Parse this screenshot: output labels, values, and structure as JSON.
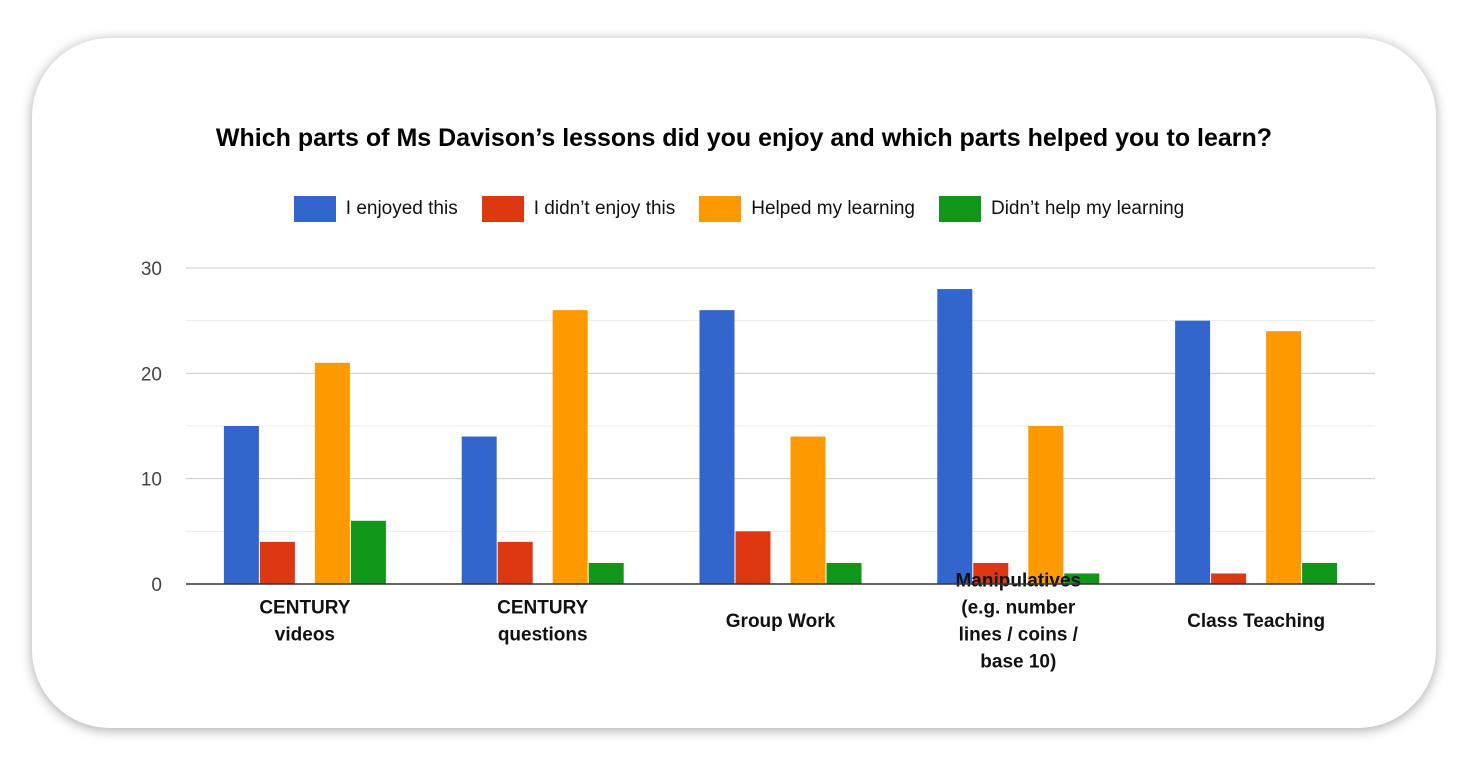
{
  "chart_data": {
    "type": "bar",
    "title": "Which parts of Ms Davison’s lessons did you enjoy and which parts helped you to learn?",
    "categories": [
      [
        "CENTURY",
        "videos"
      ],
      [
        "CENTURY",
        "questions"
      ],
      [
        "Group Work"
      ],
      [
        "Manipulatives",
        "(e.g. number",
        "lines / coins /",
        "base 10)"
      ],
      [
        "Class Teaching"
      ]
    ],
    "series": [
      {
        "name": "I enjoyed this",
        "color": "#3366cc",
        "values": [
          15,
          14,
          26,
          28,
          25
        ]
      },
      {
        "name": "I didn’t enjoy this",
        "color": "#dc3912",
        "values": [
          4,
          4,
          5,
          2,
          1
        ]
      },
      {
        "name": "Helped my learning",
        "color": "#ff9900",
        "values": [
          21,
          26,
          14,
          15,
          24
        ]
      },
      {
        "name": "Didn’t help my learning",
        "color": "#109618",
        "values": [
          6,
          2,
          2,
          1,
          2
        ]
      }
    ],
    "yticks": [
      "0",
      "10",
      "20",
      "30"
    ],
    "ylim": [
      0,
      30
    ],
    "grid": true,
    "legend": "top"
  }
}
